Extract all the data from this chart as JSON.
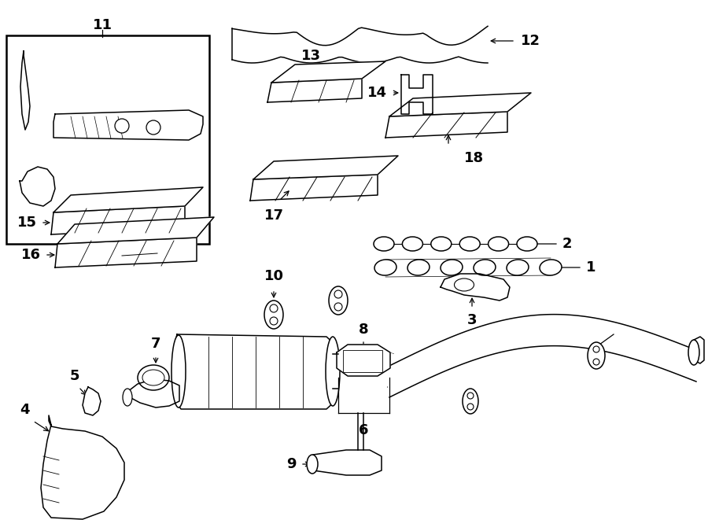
{
  "bg_color": "#ffffff",
  "line_color": "#000000",
  "fig_width": 9.0,
  "fig_height": 6.61,
  "dpi": 100,
  "lw": 1.1
}
